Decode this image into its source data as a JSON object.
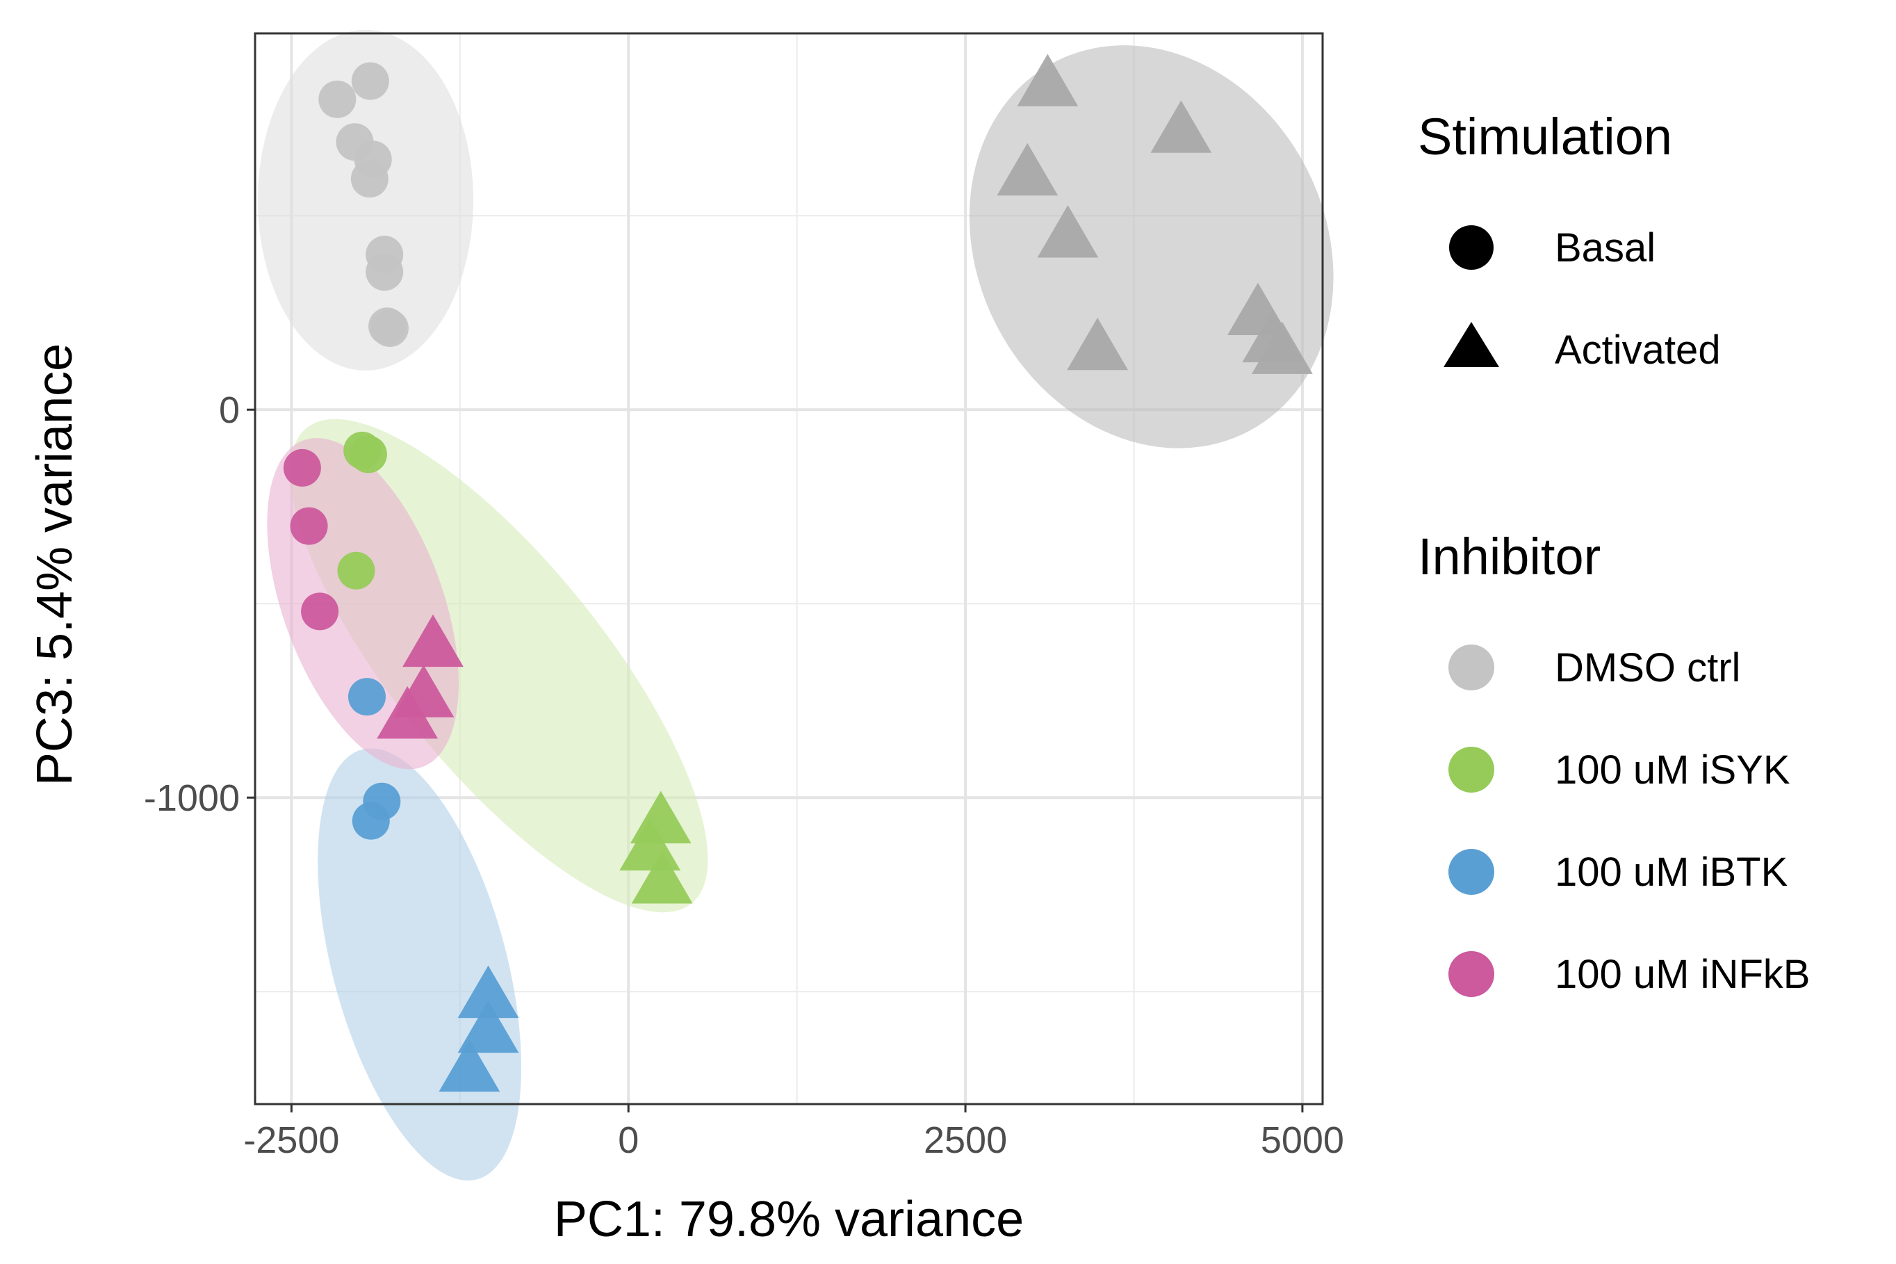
{
  "chart_data": {
    "type": "scatter",
    "xlabel": "PC1: 79.8% variance",
    "ylabel": "PC3: 5.4% variance",
    "xlim": [
      -2770,
      5150
    ],
    "ylim": [
      -1790,
      970
    ],
    "x_ticks": [
      -2500,
      0,
      2500,
      5000
    ],
    "x_tick_labels": [
      "-2500",
      "0",
      "2500",
      "5000"
    ],
    "x_minor_ticks": [
      -1250,
      1250,
      3750
    ],
    "y_ticks": [
      0,
      -1000
    ],
    "y_tick_labels": [
      "0",
      "-1000"
    ],
    "y_minor_ticks": [
      500,
      -500,
      -1500
    ],
    "grid": true,
    "legend_position": "right",
    "legends": [
      {
        "title": "Stimulation",
        "entries": [
          {
            "label": "Basal",
            "shape": "circle"
          },
          {
            "label": "Activated",
            "shape": "triangle"
          }
        ]
      },
      {
        "title": "Inhibitor",
        "entries": [
          {
            "label": "DMSO ctrl",
            "color": "#c4c4c4"
          },
          {
            "label": "100 uM iSYK",
            "color": "#96cb5a"
          },
          {
            "label": "100 uM iBTK",
            "color": "#5a9fd4"
          },
          {
            "label": "100 uM iNFkB",
            "color": "#cc5a9d"
          }
        ]
      }
    ],
    "series": [
      {
        "inhibitor": "DMSO ctrl",
        "stimulation": "Basal",
        "color": "#c4c4c4",
        "shape": "circle",
        "points": [
          [
            -1915,
            847
          ],
          [
            -2160,
            800
          ],
          [
            -2030,
            690
          ],
          [
            -1895,
            645
          ],
          [
            -1920,
            595
          ],
          [
            -1810,
            400
          ],
          [
            -1810,
            355
          ],
          [
            -1790,
            215
          ],
          [
            -1770,
            210
          ]
        ]
      },
      {
        "inhibitor": "DMSO ctrl",
        "stimulation": "Activated",
        "color": "#a9a9a9",
        "shape": "triangle",
        "points": [
          [
            3110,
            840
          ],
          [
            4100,
            720
          ],
          [
            2960,
            610
          ],
          [
            3260,
            450
          ],
          [
            3480,
            160
          ],
          [
            4670,
            250
          ],
          [
            4780,
            180
          ],
          [
            4850,
            150
          ]
        ]
      },
      {
        "inhibitor": "100 uM iSYK",
        "stimulation": "Basal",
        "color": "#96cb5a",
        "shape": "circle",
        "points": [
          [
            -1975,
            -105
          ],
          [
            -1930,
            -115
          ],
          [
            -2020,
            -415
          ]
        ]
      },
      {
        "inhibitor": "100 uM iSYK",
        "stimulation": "Activated",
        "color": "#96cb5a",
        "shape": "triangle",
        "points": [
          [
            240,
            -1060
          ],
          [
            160,
            -1130
          ],
          [
            250,
            -1215
          ]
        ]
      },
      {
        "inhibitor": "100 uM iBTK",
        "stimulation": "Basal",
        "color": "#5a9fd4",
        "shape": "circle",
        "points": [
          [
            -1940,
            -740
          ],
          [
            -1830,
            -1010
          ],
          [
            -1910,
            -1060
          ]
        ]
      },
      {
        "inhibitor": "100 uM iBTK",
        "stimulation": "Activated",
        "color": "#5a9fd4",
        "shape": "triangle",
        "points": [
          [
            -1040,
            -1510
          ],
          [
            -1040,
            -1600
          ],
          [
            -1180,
            -1700
          ]
        ]
      },
      {
        "inhibitor": "100 uM iNFkB",
        "stimulation": "Basal",
        "color": "#cc5a9d",
        "shape": "circle",
        "points": [
          [
            -2420,
            -150
          ],
          [
            -2370,
            -300
          ],
          [
            -2290,
            -520
          ]
        ]
      },
      {
        "inhibitor": "100 uM iNFkB",
        "stimulation": "Activated",
        "color": "#cc5a9d",
        "shape": "triangle",
        "points": [
          [
            -1450,
            -605
          ],
          [
            -1520,
            -735
          ],
          [
            -1640,
            -790
          ]
        ]
      }
    ],
    "ellipses": [
      {
        "group": "DMSO ctrl Basal",
        "center": [
          -1950,
          540
        ],
        "radii": [
          800,
          430
        ],
        "angle_deg": 0,
        "color": "#e0e0e0",
        "opacity": 0.6
      },
      {
        "group": "DMSO ctrl Activated",
        "center": [
          3880,
          420
        ],
        "radii": [
          1350,
          530
        ],
        "angle_deg": 0,
        "color": "#bdbdbd",
        "opacity": 0.6
      },
      {
        "group": "100 uM iSYK",
        "center": [
          -960,
          -660
        ],
        "radii": [
          1320,
          580
        ],
        "angle_deg": 0,
        "color": "#d6ebb8",
        "opacity": 0.6
      },
      {
        "group": "100 uM iBTK",
        "center": [
          -1550,
          -1430
        ],
        "radii": [
          770,
          810
        ],
        "angle_deg": 0,
        "color": "#b3d1e8",
        "opacity": 0.6
      },
      {
        "group": "100 uM iNFkB",
        "center": [
          -1970,
          -500
        ],
        "radii": [
          590,
          450
        ],
        "angle_deg": 0,
        "color": "#e8b3d1",
        "opacity": 0.6
      }
    ]
  }
}
